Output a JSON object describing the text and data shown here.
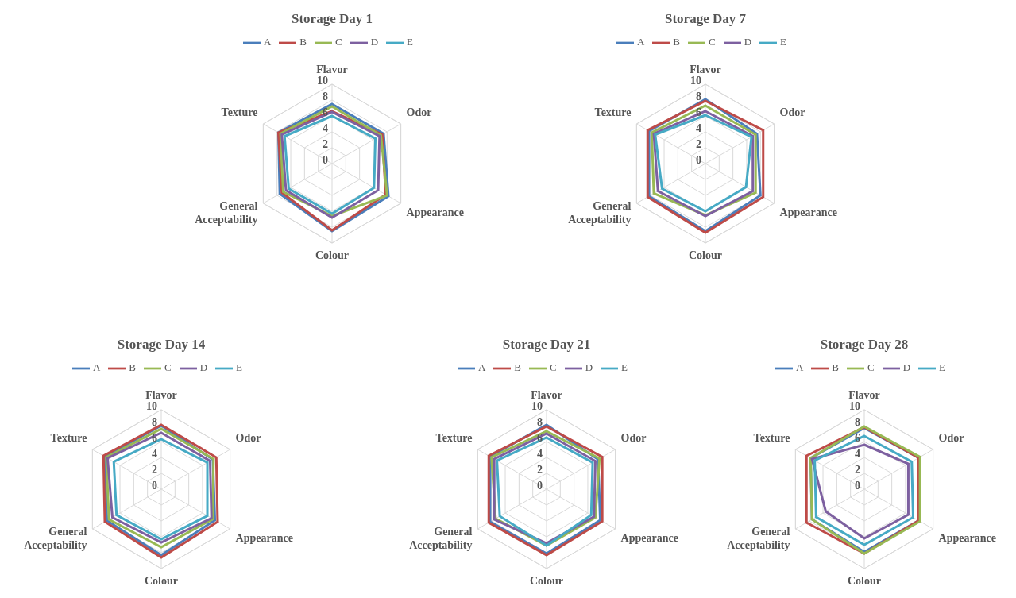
{
  "chart_data": [
    {
      "type": "radar",
      "title": "Storage Day 1",
      "categories": [
        "Flavor",
        "Odor",
        "Appearance",
        "Colour",
        "General Acceptability",
        "Texture"
      ],
      "ylim": [
        0,
        10
      ],
      "yticks": [
        0,
        2,
        4,
        6,
        8,
        10
      ],
      "grid": true,
      "legend": "top",
      "series": [
        {
          "name": "A",
          "color": "#4a7ebb",
          "values": [
            7.5,
            7.5,
            8.2,
            8.5,
            7.6,
            7.8
          ]
        },
        {
          "name": "B",
          "color": "#be4b48",
          "values": [
            6.6,
            7.3,
            7.8,
            8.4,
            7.3,
            7.8
          ]
        },
        {
          "name": "C",
          "color": "#98b954",
          "values": [
            7.2,
            7.1,
            8.0,
            6.6,
            7.1,
            7.5
          ]
        },
        {
          "name": "D",
          "color": "#7d60a0",
          "values": [
            6.5,
            6.9,
            6.7,
            6.8,
            6.7,
            7.3
          ]
        },
        {
          "name": "E",
          "color": "#46aac5",
          "values": [
            6.0,
            6.3,
            6.1,
            6.3,
            6.3,
            6.9
          ]
        }
      ]
    },
    {
      "type": "radar",
      "title": "Storage Day 7",
      "categories": [
        "Flavor",
        "Odor",
        "Appearance",
        "Colour",
        "General Acceptability",
        "Texture"
      ],
      "ylim": [
        0,
        10
      ],
      "yticks": [
        0,
        2,
        4,
        6,
        8,
        10
      ],
      "grid": true,
      "legend": "top",
      "series": [
        {
          "name": "A",
          "color": "#4a7ebb",
          "values": [
            8.1,
            7.5,
            8.0,
            8.5,
            8.2,
            8.2
          ]
        },
        {
          "name": "B",
          "color": "#be4b48",
          "values": [
            7.9,
            8.4,
            8.4,
            8.7,
            8.4,
            8.4
          ]
        },
        {
          "name": "C",
          "color": "#98b954",
          "values": [
            7.3,
            7.3,
            7.3,
            6.5,
            7.5,
            7.8
          ]
        },
        {
          "name": "D",
          "color": "#7d60a0",
          "values": [
            6.6,
            6.9,
            6.9,
            6.6,
            6.9,
            7.5
          ]
        },
        {
          "name": "E",
          "color": "#46aac5",
          "values": [
            6.1,
            6.7,
            5.9,
            6.0,
            6.3,
            7.3
          ]
        }
      ]
    },
    {
      "type": "radar",
      "title": "Storage Day 14",
      "categories": [
        "Flavor",
        "Odor",
        "Appearance",
        "Colour",
        "General Acceptability",
        "Texture"
      ],
      "ylim": [
        0,
        10
      ],
      "yticks": [
        0,
        2,
        4,
        6,
        8,
        10
      ],
      "grid": true,
      "legend": "top",
      "series": [
        {
          "name": "A",
          "color": "#4a7ebb",
          "values": [
            8.0,
            7.5,
            7.8,
            8.3,
            7.9,
            8.2
          ]
        },
        {
          "name": "B",
          "color": "#be4b48",
          "values": [
            8.1,
            8.0,
            8.2,
            8.6,
            8.2,
            8.4
          ]
        },
        {
          "name": "C",
          "color": "#98b954",
          "values": [
            7.6,
            7.6,
            7.5,
            7.3,
            7.6,
            8.0
          ]
        },
        {
          "name": "D",
          "color": "#7d60a0",
          "values": [
            7.1,
            7.1,
            7.3,
            6.7,
            7.1,
            7.8
          ]
        },
        {
          "name": "E",
          "color": "#46aac5",
          "values": [
            6.3,
            6.7,
            6.7,
            6.3,
            6.5,
            6.9
          ]
        }
      ]
    },
    {
      "type": "radar",
      "title": "Storage Day 21",
      "categories": [
        "Flavor",
        "Odor",
        "Appearance",
        "Colour",
        "General Acceptability",
        "Texture"
      ],
      "ylim": [
        0,
        10
      ],
      "yticks": [
        0,
        2,
        4,
        6,
        8,
        10
      ],
      "grid": true,
      "legend": "top",
      "series": [
        {
          "name": "A",
          "color": "#4a7ebb",
          "values": [
            8.1,
            7.5,
            7.8,
            8.1,
            8.2,
            8.2
          ]
        },
        {
          "name": "B",
          "color": "#be4b48",
          "values": [
            7.9,
            8.1,
            8.1,
            8.3,
            8.4,
            8.4
          ]
        },
        {
          "name": "C",
          "color": "#98b954",
          "values": [
            7.3,
            7.7,
            7.1,
            7.1,
            7.4,
            8.0
          ]
        },
        {
          "name": "D",
          "color": "#7d60a0",
          "values": [
            7.0,
            7.1,
            6.9,
            6.8,
            7.6,
            7.6
          ]
        },
        {
          "name": "E",
          "color": "#46aac5",
          "values": [
            6.5,
            6.7,
            6.5,
            7.1,
            6.8,
            7.2
          ]
        }
      ]
    },
    {
      "type": "radar",
      "title": "Storage Day 28",
      "categories": [
        "Flavor",
        "Odor",
        "Appearance",
        "Colour",
        "General Acceptability",
        "Texture"
      ],
      "ylim": [
        0,
        10
      ],
      "yticks": [
        0,
        2,
        4,
        6,
        8,
        10
      ],
      "grid": true,
      "legend": "top",
      "series": [
        {
          "name": "A",
          "color": "#4a7ebb",
          "values": [
            7.7,
            7.9,
            7.9,
            7.9,
            7.6,
            7.8
          ]
        },
        {
          "name": "B",
          "color": "#be4b48",
          "values": [
            7.8,
            7.9,
            7.9,
            8.1,
            8.4,
            8.4
          ]
        },
        {
          "name": "C",
          "color": "#98b954",
          "values": [
            7.9,
            8.1,
            8.1,
            8.1,
            7.6,
            7.8
          ]
        },
        {
          "name": "D",
          "color": "#7d60a0",
          "values": [
            5.6,
            6.4,
            6.4,
            6.2,
            5.6,
            7.6
          ]
        },
        {
          "name": "E",
          "color": "#46aac5",
          "values": [
            6.7,
            6.9,
            7.1,
            7.0,
            7.0,
            7.2
          ]
        }
      ]
    }
  ]
}
